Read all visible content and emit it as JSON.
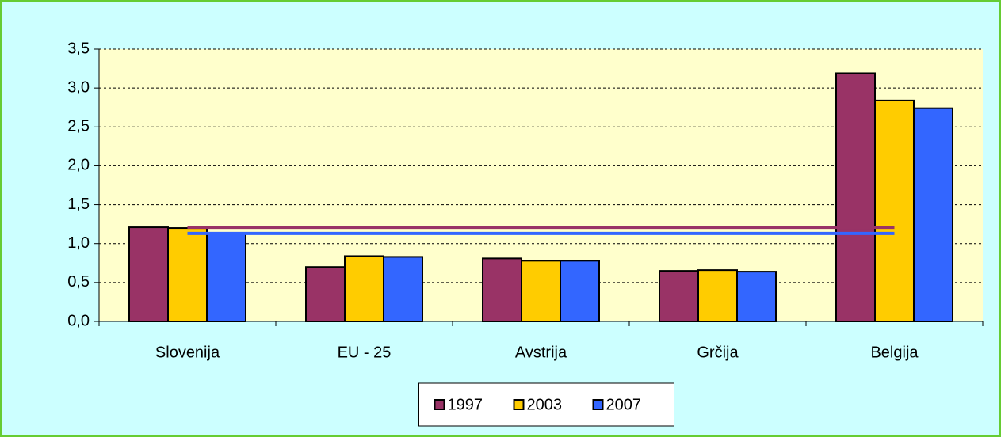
{
  "chart_data": {
    "type": "bar",
    "categories": [
      "Slovenija",
      "EU - 25",
      "Avstrija",
      "Grčija",
      "Belgija"
    ],
    "series": [
      {
        "name": "1997",
        "color": "#993366",
        "values": [
          1.21,
          0.7,
          0.81,
          0.65,
          3.19
        ]
      },
      {
        "name": "2003",
        "color": "#ffcc00",
        "values": [
          1.2,
          0.84,
          0.78,
          0.66,
          2.84
        ]
      },
      {
        "name": "2007",
        "color": "#3366ff",
        "values": [
          1.13,
          0.83,
          0.78,
          0.64,
          2.74
        ]
      }
    ],
    "reference_lines": [
      {
        "value": 1.21,
        "color": "#993366"
      },
      {
        "value": 1.13,
        "color": "#3366ff"
      }
    ],
    "ylim": [
      0,
      3.5
    ],
    "yticks": [
      {
        "value": 0,
        "label": "0,0"
      },
      {
        "value": 0.5,
        "label": "0,5"
      },
      {
        "value": 1,
        "label": "1,0"
      },
      {
        "value": 1.5,
        "label": "1,5"
      },
      {
        "value": 2,
        "label": "2,0"
      },
      {
        "value": 2.5,
        "label": "2,5"
      },
      {
        "value": 3,
        "label": "3,0"
      },
      {
        "value": 3.5,
        "label": "3,5"
      }
    ],
    "grid": true,
    "legend": "bottom"
  }
}
